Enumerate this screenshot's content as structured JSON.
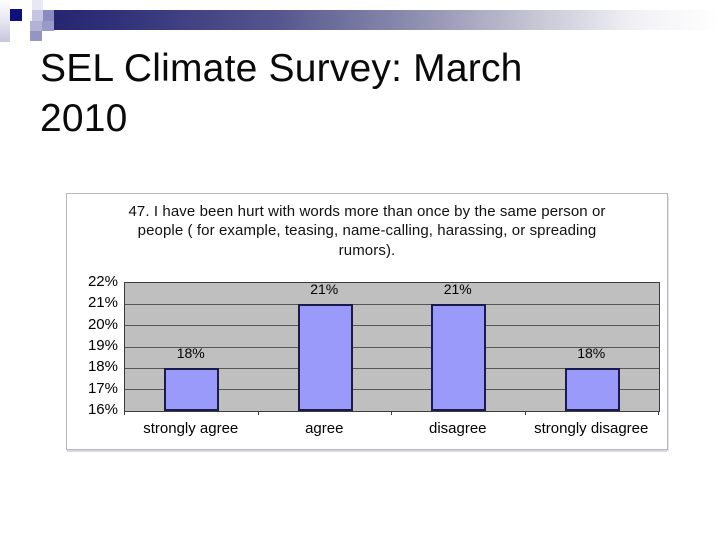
{
  "slide": {
    "title": "SEL Climate Survey: March 2010",
    "background": "#ffffff"
  },
  "template_decoration": {
    "style": "pixel-squares-with-gradient-bar",
    "navy": "#10107a",
    "lavender": "#8b8bc3",
    "light_lavender": "#c5c5df"
  },
  "chart_data": {
    "type": "bar",
    "title": "47. I have been hurt with words more than once by the same person or people ( for example, teasing, name-calling, harassing, or spreading rumors).",
    "categories": [
      "strongly agree",
      "agree",
      "disagree",
      "strongly disagree"
    ],
    "values": [
      18,
      21,
      21,
      18
    ],
    "data_labels": [
      "18%",
      "21%",
      "21%",
      "18%"
    ],
    "y_tick_labels": [
      "22%",
      "21%",
      "20%",
      "19%",
      "18%",
      "17%",
      "16%"
    ],
    "ylim": [
      16,
      22
    ],
    "unit": "%",
    "grid": true,
    "legend": false,
    "xlabel": "",
    "ylabel": "",
    "colors": {
      "plot_bg": "#bfbfbf",
      "bar_fill": "#9a9afa",
      "bar_border": "#1a1a4d",
      "gridline": "#565656"
    }
  }
}
